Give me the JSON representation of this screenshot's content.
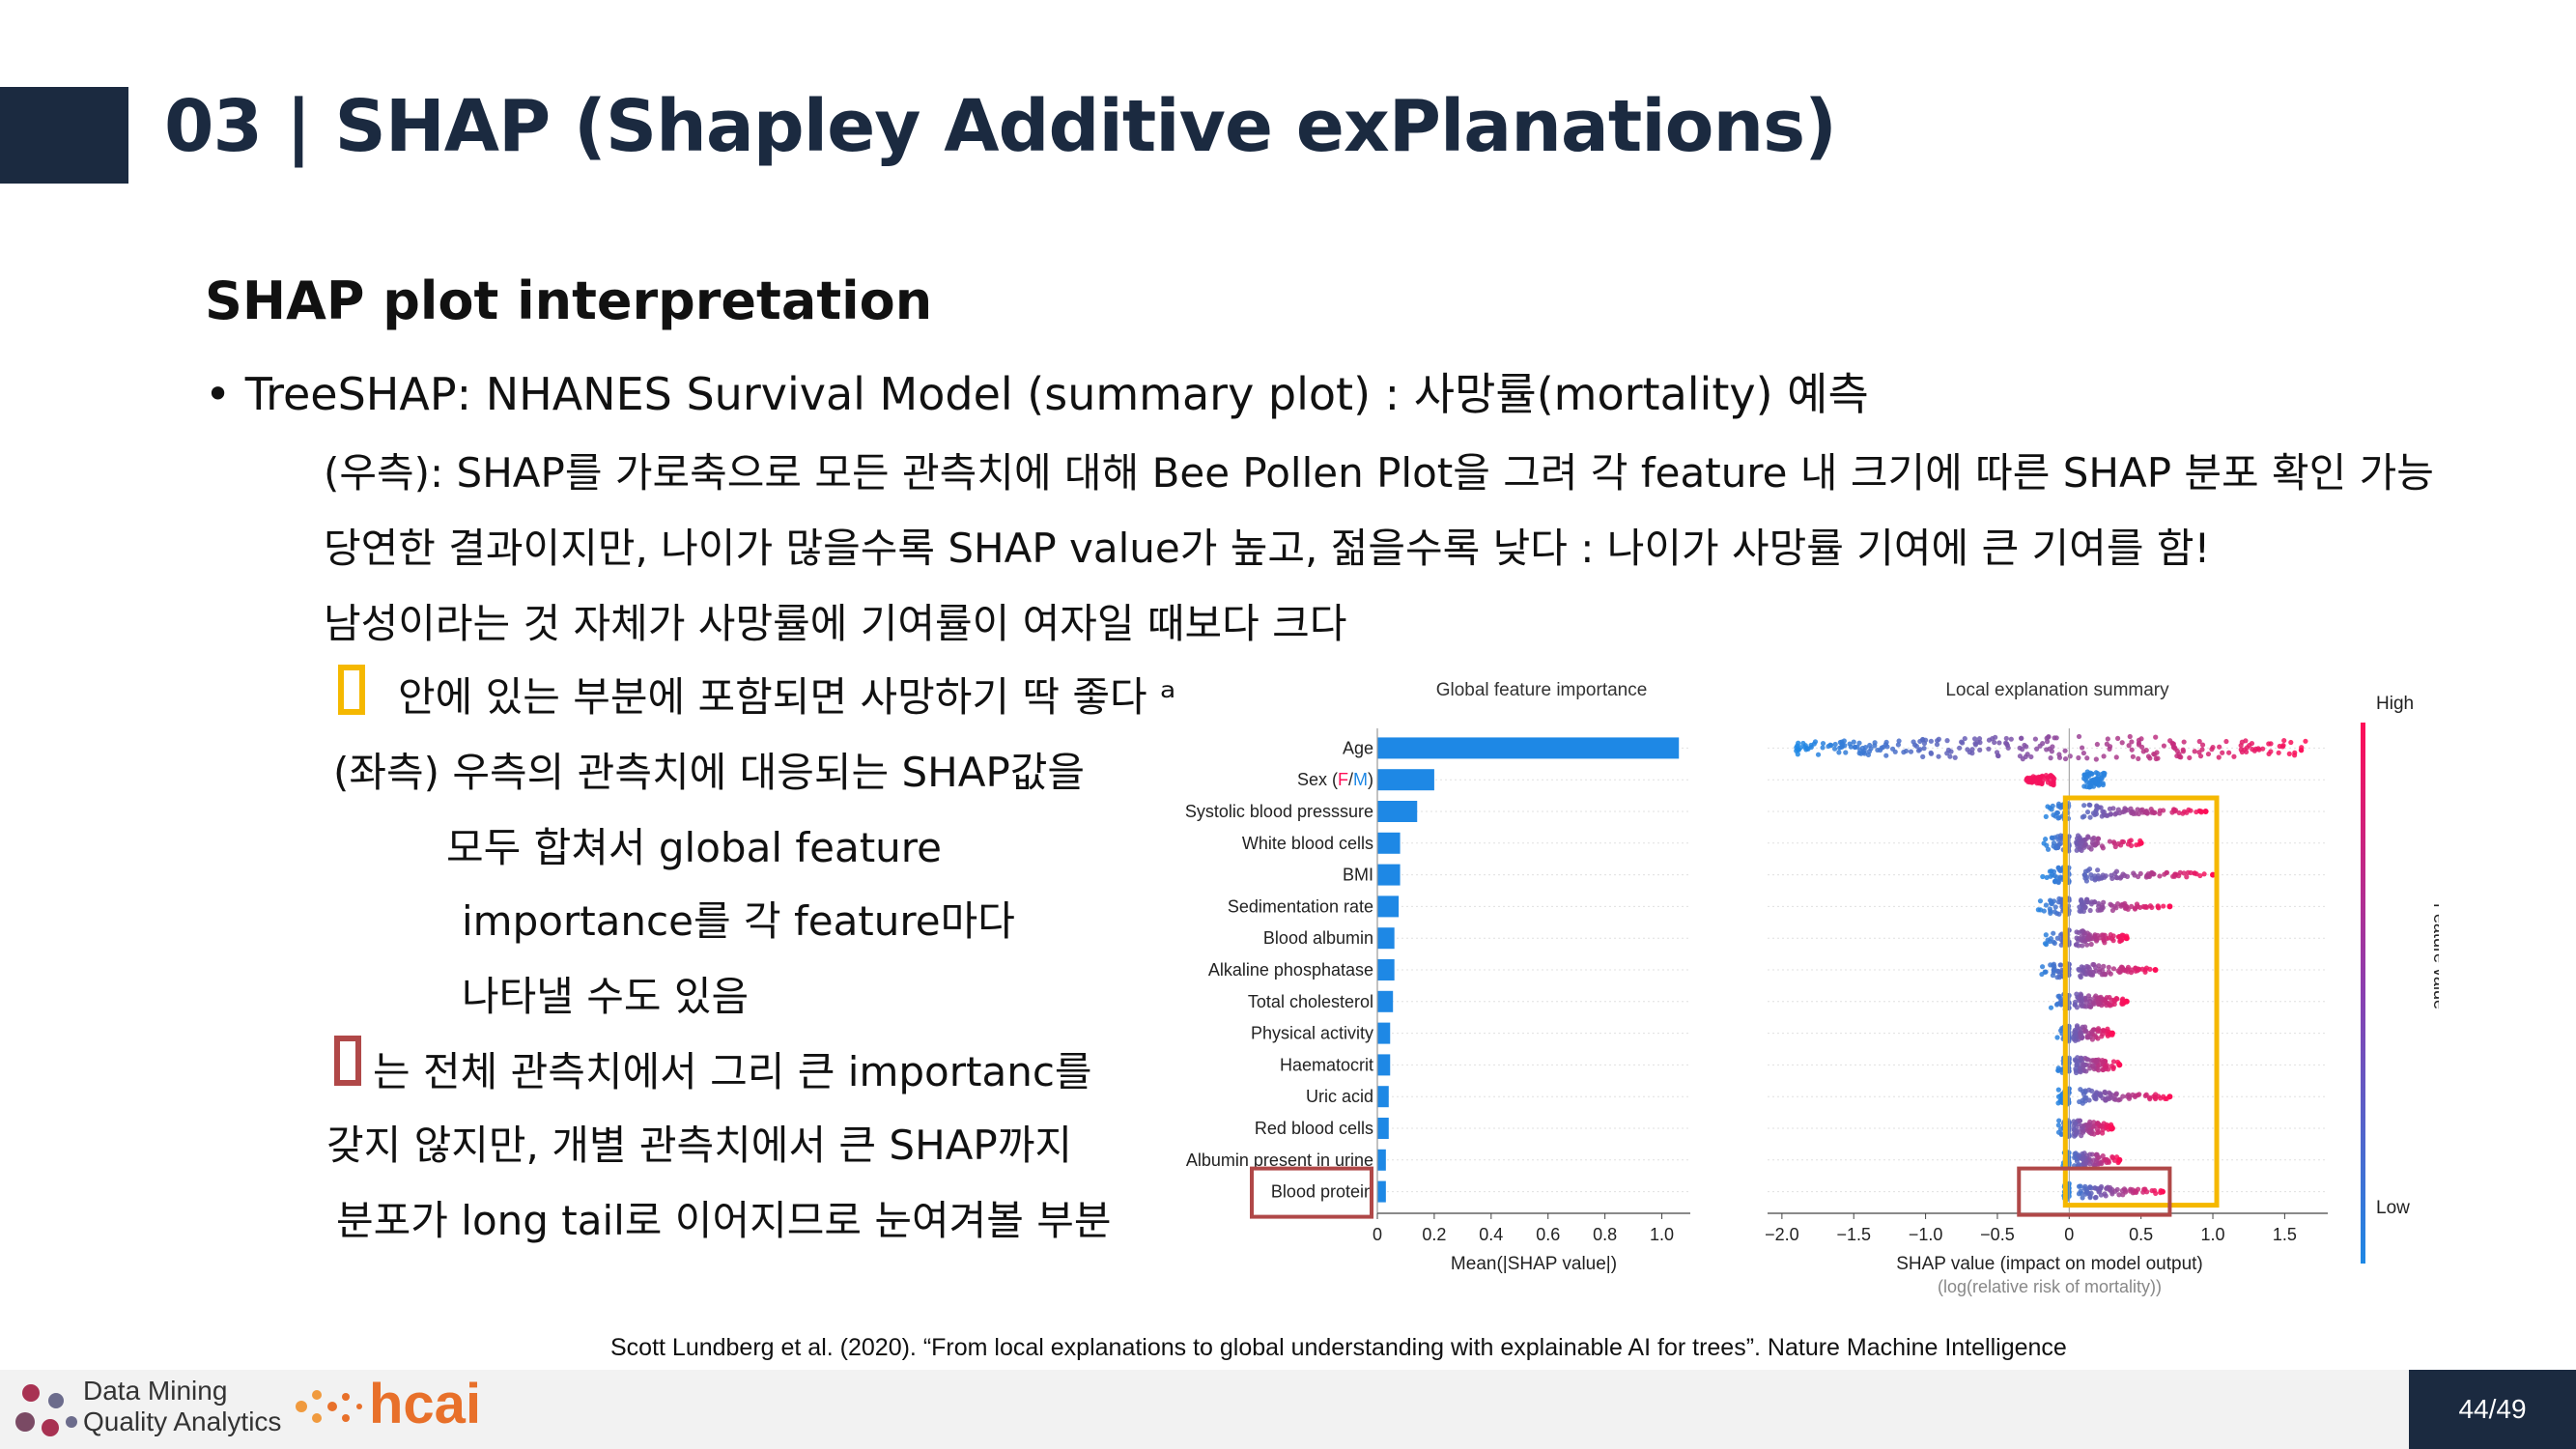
{
  "slide": {
    "title": "03 | SHAP (Shapley Additive exPlanations)",
    "subtitle": "SHAP plot interpretation",
    "bullet": "• TreeSHAP: NHANES Survival Model (summary plot) : 사망률(mortality) 예측",
    "lines": [
      "(우측): SHAP를 가로축으로 모든 관측치에 대해 Bee Pollen Plot을 그려 각 feature 내 크기에 따른 SHAP 분포 확인 가능",
      "당연한 결과이지만, 나이가 많을수록 SHAP value가 높고, 젊을수록 낮다 : 나이가 사망률 기여에 큰 기여를 함!",
      "남성이라는 것 자체가 사망률에 기여률이 여자일 때보다 크다",
      "안에 있는 부분에 포함되면 사망하기 딱 좋다 ᵃ",
      "(좌측) 우측의 관측치에 대응되는 SHAP값을",
      "모두 합쳐서 global feature",
      "importance를 각 feature마다",
      "나타낼 수도 있음",
      "는 전체 관측치에서 그리 큰 importanc를",
      "갖지 않지만, 개별 관측치에서 큰 SHAP까지",
      "분포가 long tail로 이어지므로 눈여겨볼 부분"
    ],
    "citation": "Scott Lundberg et al. (2020). “From local explanations to global understanding with explainable AI for trees”. Nature Machine Intelligence",
    "footer": {
      "logo1_line1": "Data Mining",
      "logo1_line2": "Quality Analytics",
      "logo2": "hcai",
      "page": "44/49"
    }
  },
  "colors": {
    "title": "#1b2a40",
    "bar": "#1e88e5",
    "high": "#ff0d57",
    "low": "#1e88e5",
    "yellow_box": "#f5b800",
    "red_box": "#b04848"
  },
  "chart_data": [
    {
      "type": "bar",
      "title": "Global feature importance",
      "xlabel": "Mean(|SHAP value|)",
      "orientation": "horizontal",
      "categories": [
        "Age",
        "Sex (F/M)",
        "Systolic blood presssure",
        "White blood cells",
        "BMI",
        "Sedimentation rate",
        "Blood albumin",
        "Alkaline phosphatase",
        "Total cholesterol",
        "Physical activity",
        "Haematocrit",
        "Uric acid",
        "Red blood cells",
        "Albumin present in urine",
        "Blood protein"
      ],
      "values": [
        1.06,
        0.2,
        0.14,
        0.08,
        0.08,
        0.075,
        0.06,
        0.06,
        0.055,
        0.045,
        0.045,
        0.04,
        0.04,
        0.03,
        0.03
      ],
      "xlim": [
        0,
        1.1
      ],
      "xticks": [
        "0",
        "0.2",
        "0.4",
        "0.6",
        "0.8",
        "1.0"
      ]
    },
    {
      "type": "scatter",
      "title": "Local explanation summary",
      "xlabel": "SHAP value (impact on model output)",
      "xlabel2": "(log(relative risk of mortality))",
      "xlim": [
        -2.1,
        1.8
      ],
      "xticks": [
        "−2.0",
        "−1.5",
        "−1.0",
        "−0.5",
        "0",
        "0.5",
        "1.0",
        "1.5"
      ],
      "colorbar": {
        "high": "High",
        "low": "Low",
        "label": "Feature value"
      },
      "rows": [
        {
          "feature": "Age",
          "min": -1.9,
          "max": 1.65,
          "center": 0.0
        },
        {
          "feature": "Sex (F/M)",
          "min": -0.3,
          "max": 0.25,
          "center": 0.1
        },
        {
          "feature": "Systolic blood presssure",
          "min": -0.2,
          "max": 0.95,
          "center": 0.0
        },
        {
          "feature": "White blood cells",
          "min": -0.2,
          "max": 0.5,
          "center": 0.0
        },
        {
          "feature": "BMI",
          "min": -0.2,
          "max": 1.0,
          "center": 0.0
        },
        {
          "feature": "Sedimentation rate",
          "min": -0.25,
          "max": 0.7,
          "center": 0.0
        },
        {
          "feature": "Blood albumin",
          "min": -0.2,
          "max": 0.4,
          "center": 0.0
        },
        {
          "feature": "Alkaline phosphatase",
          "min": -0.25,
          "max": 0.6,
          "center": 0.0
        },
        {
          "feature": "Total cholesterol",
          "min": -0.15,
          "max": 0.4,
          "center": 0.0
        },
        {
          "feature": "Physical activity",
          "min": -0.1,
          "max": 0.3,
          "center": 0.0
        },
        {
          "feature": "Haematocrit",
          "min": -0.1,
          "max": 0.35,
          "center": 0.0
        },
        {
          "feature": "Uric acid",
          "min": -0.1,
          "max": 0.7,
          "center": 0.0
        },
        {
          "feature": "Red blood cells",
          "min": -0.1,
          "max": 0.3,
          "center": 0.0
        },
        {
          "feature": "Albumin present in urine",
          "min": -0.05,
          "max": 0.35,
          "center": 0.0
        },
        {
          "feature": "Blood protein",
          "min": -0.05,
          "max": 0.65,
          "center": 0.0
        }
      ]
    }
  ]
}
